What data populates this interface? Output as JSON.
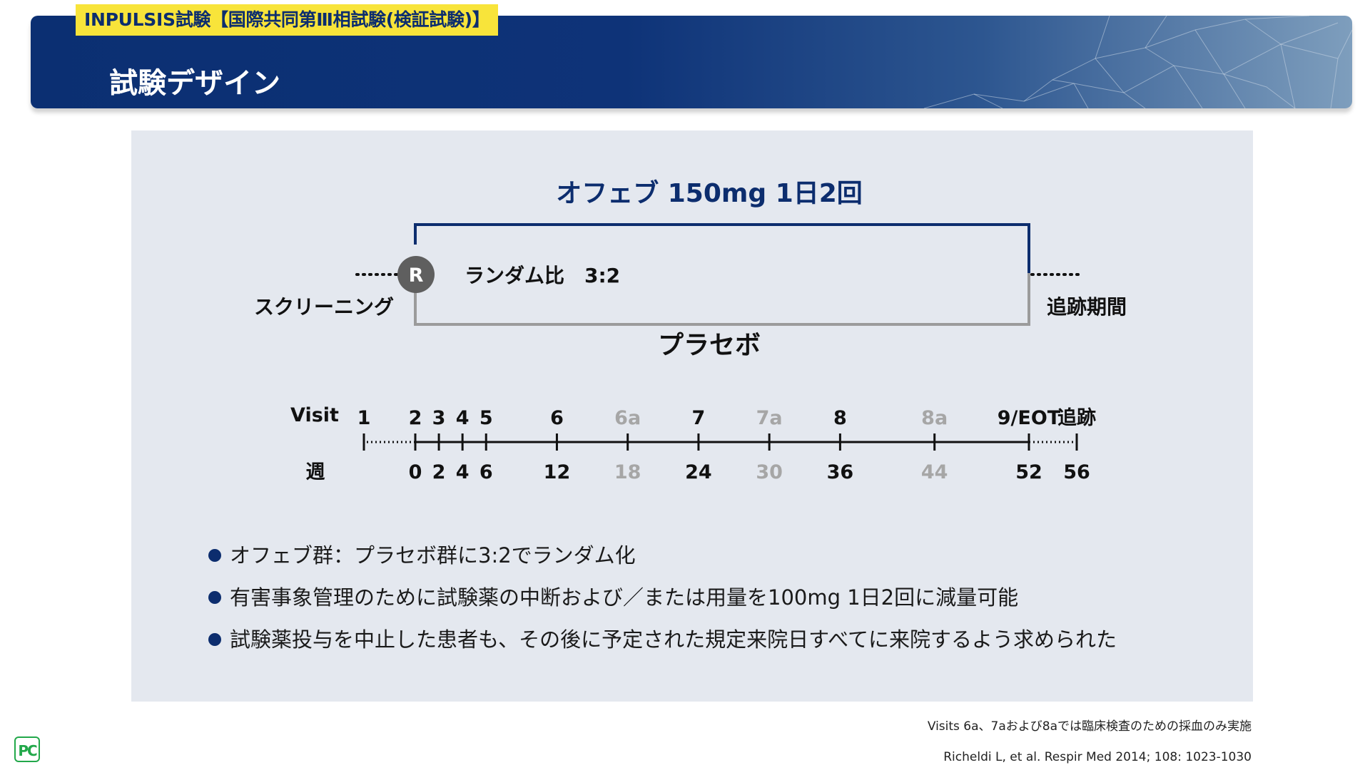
{
  "header": {
    "study_tag": "INPULSIS試験【国際共同第Ⅲ相試験(検証試験)】",
    "page_title": "試験デザイン"
  },
  "diagram": {
    "treatment_arm": "オフェブ 150mg 1日2回",
    "placebo_arm": "プラセボ",
    "randomization_symbol": "R",
    "randomization_ratio": "ランダム比　3:2",
    "screening_label": "スクリーニング",
    "followup_label": "追跡期間",
    "visit_row_label": "Visit",
    "week_row_label": "週",
    "colors": {
      "treatment": "#0c2d6e",
      "placebo": "#9b9b9b",
      "grey_visit": "#a6a6a6",
      "r_badge": "#5f5f5f"
    },
    "timeline": [
      {
        "visit": "1",
        "week": "",
        "grey": false
      },
      {
        "visit": "2",
        "week": "0",
        "grey": false
      },
      {
        "visit": "3",
        "week": "2",
        "grey": false
      },
      {
        "visit": "4",
        "week": "4",
        "grey": false
      },
      {
        "visit": "5",
        "week": "6",
        "grey": false
      },
      {
        "visit": "6",
        "week": "12",
        "grey": false
      },
      {
        "visit": "6a",
        "week": "18",
        "grey": true
      },
      {
        "visit": "7",
        "week": "24",
        "grey": false
      },
      {
        "visit": "7a",
        "week": "30",
        "grey": true
      },
      {
        "visit": "8",
        "week": "36",
        "grey": false
      },
      {
        "visit": "8a",
        "week": "44",
        "grey": true
      },
      {
        "visit": "9/EOT",
        "week": "52",
        "grey": false
      },
      {
        "visit": "追跡",
        "week": "56",
        "grey": false
      }
    ]
  },
  "bullets": [
    "オフェブ群：プラセボ群に3:2でランダム化",
    "有害事象管理のために試験薬の中断および／または用量を100mg 1日2回に減量可能",
    "試験薬投与を中止した患者も、その後に予定された規定来院日すべてに来院するよう求められた"
  ],
  "footnotes": {
    "visits_note": "Visits 6a、7aおよび8aでは臨床検査のための採血のみ実施",
    "reference": "Richeldi L, et al. Respir Med 2014; 108: 1023-1030"
  },
  "logo": {
    "text": "PC",
    "color": "#22a84a"
  }
}
